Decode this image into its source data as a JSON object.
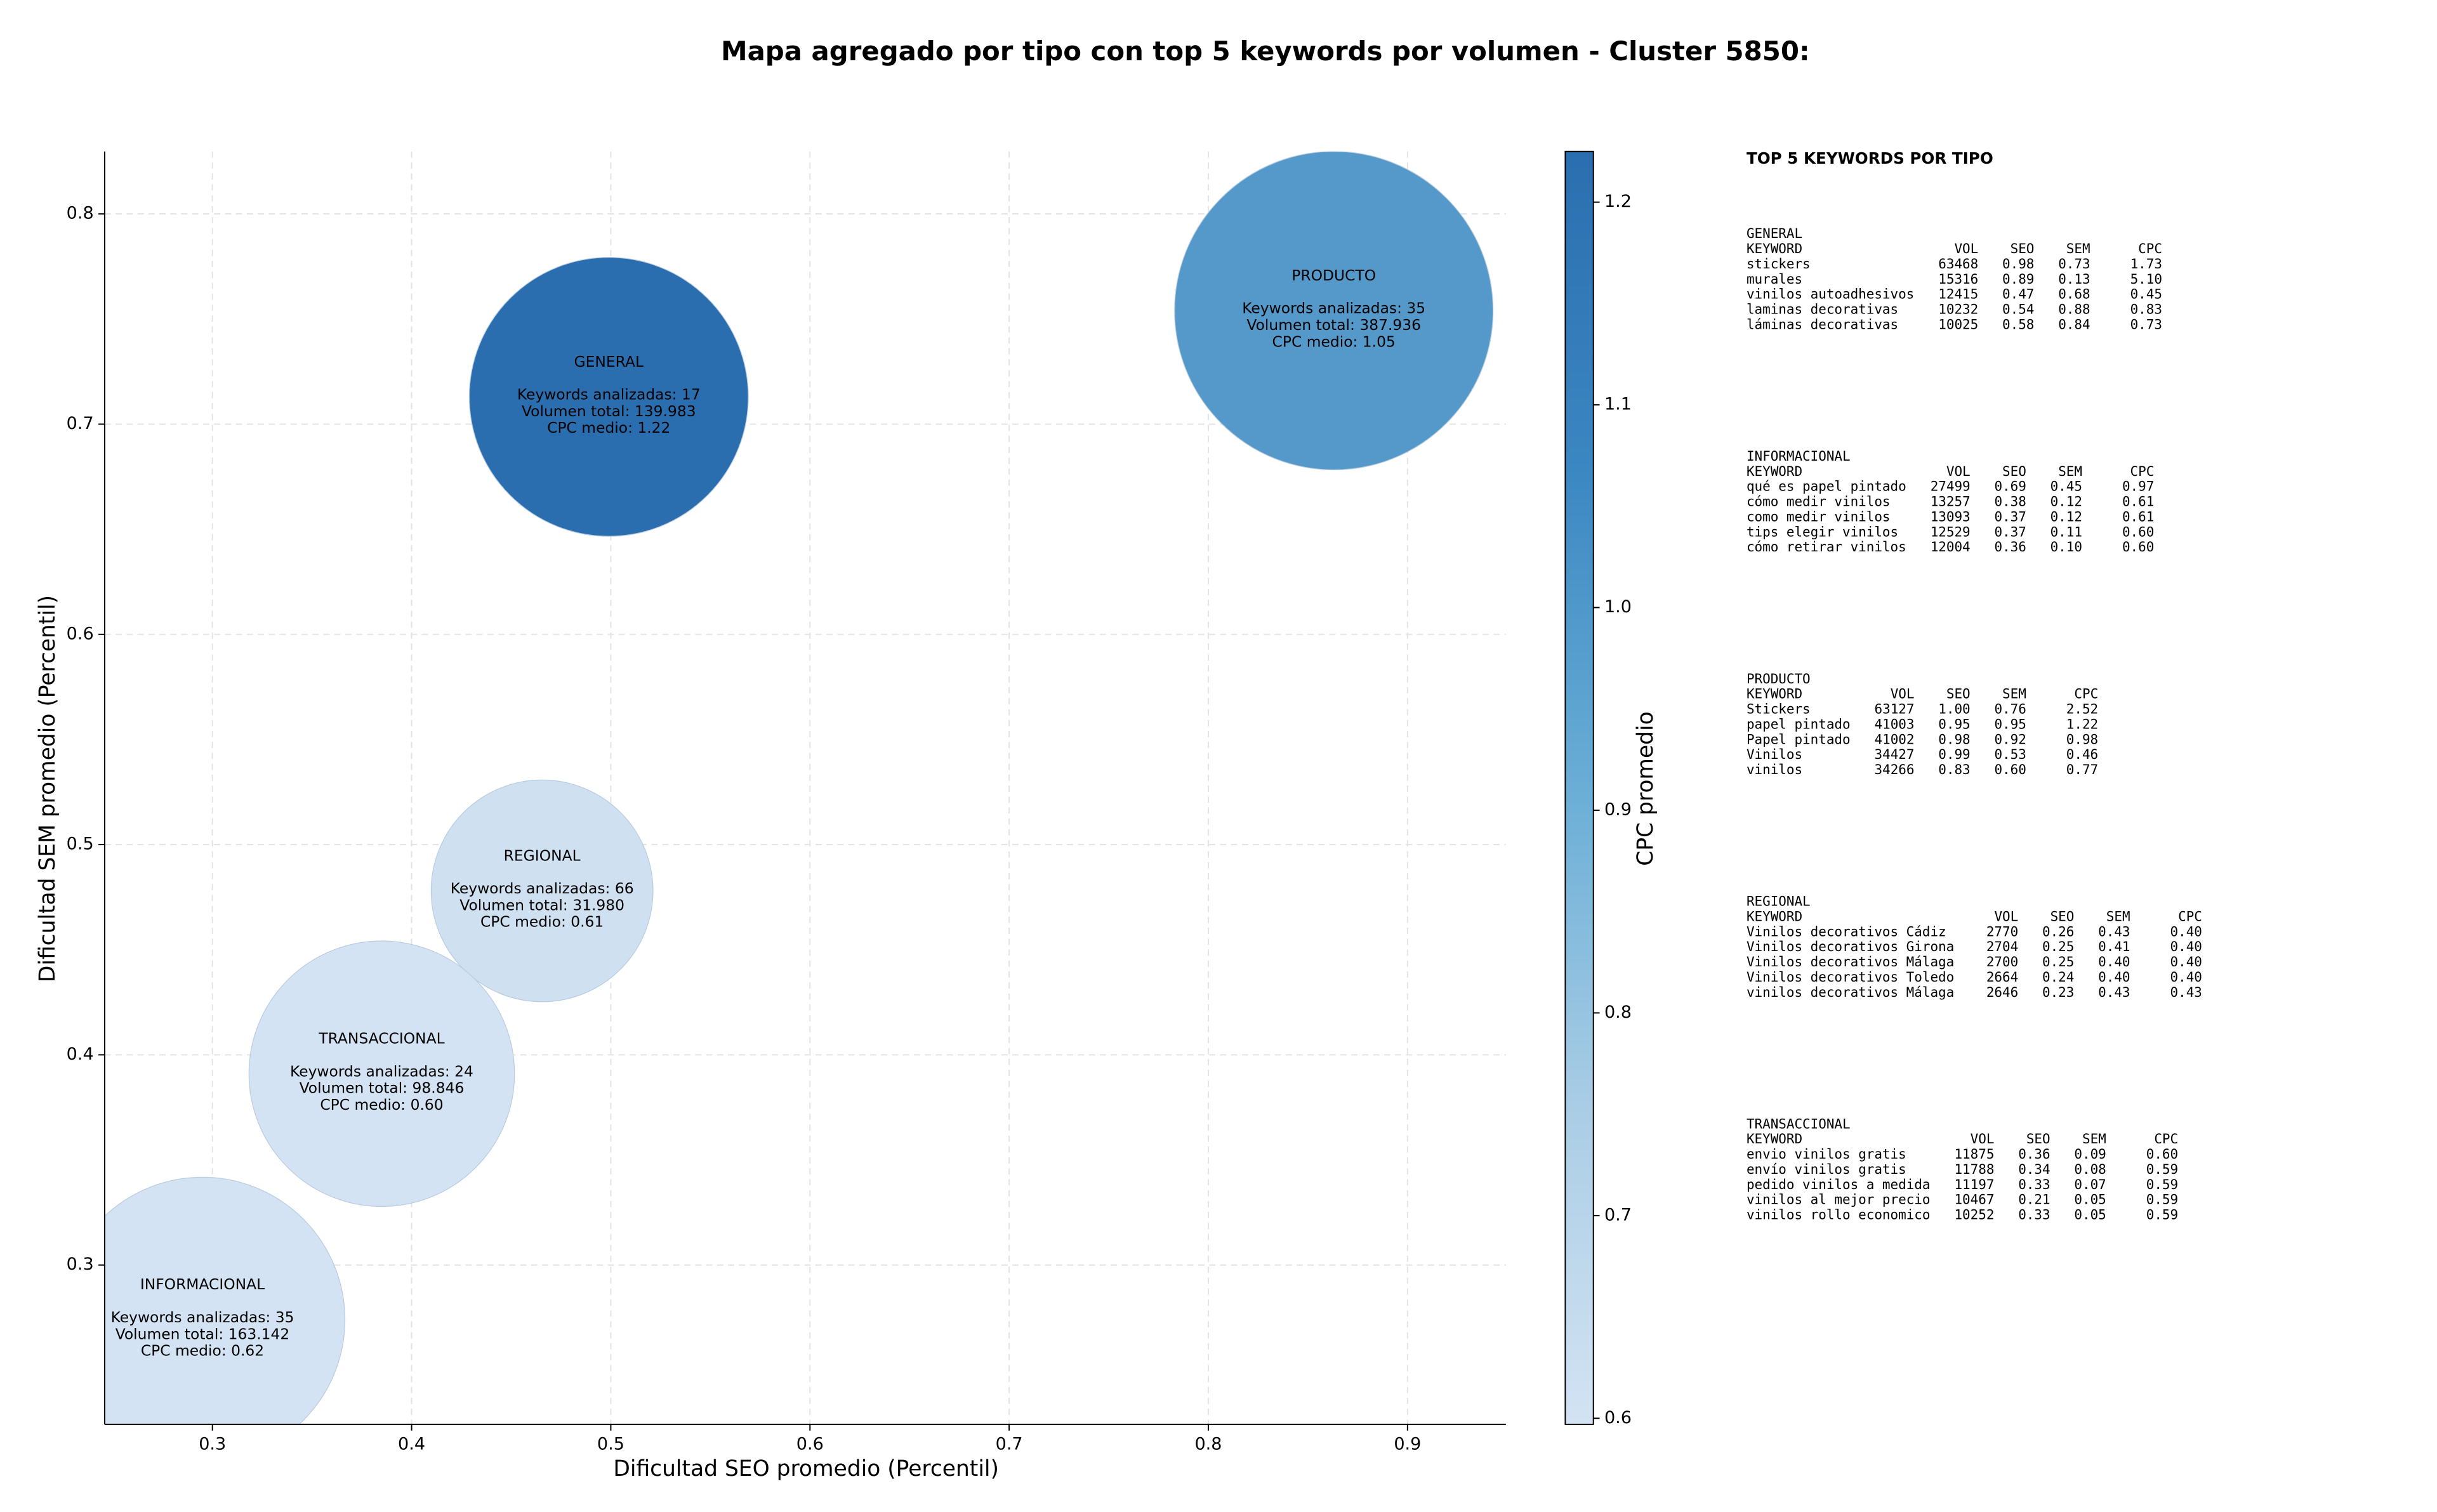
{
  "chart_data": {
    "type": "bubble",
    "title": "Mapa agregado por tipo con top 5 keywords por volumen - Cluster 5850:",
    "xlabel": "Dificultad SEO promedio (Percentil)",
    "ylabel": "Dificultad SEM promedio (Percentil)",
    "categories": [
      "GENERAL",
      "PRODUCTO",
      "REGIONAL",
      "TRANSACCIONAL",
      "INFORMACIONAL"
    ],
    "x": [
      0.499,
      0.863,
      0.4655,
      0.385,
      0.295
    ],
    "values": [
      0.713,
      0.754,
      0.478,
      0.391,
      0.274
    ],
    "sizes": [
      139983,
      387936,
      31980,
      98846,
      163142
    ],
    "colors": [
      "#2b6eaf",
      "#5499c9",
      "#cfe0f1",
      "#d3e3f3",
      "#d3e3f3"
    ],
    "annotations": [
      [
        "Keywords analizadas: 17",
        "Volumen total: 139.983",
        "CPC medio: 1.22"
      ],
      [
        "Keywords analizadas: 35",
        "Volumen total: 387.936",
        "CPC medio: 1.05"
      ],
      [
        "Keywords analizadas: 66",
        "Volumen total: 31.980",
        "CPC medio: 0.61"
      ],
      [
        "Keywords analizadas: 24",
        "Volumen total: 98.846",
        "CPC medio: 0.60"
      ],
      [
        "Keywords analizadas: 35",
        "Volumen total: 163.142",
        "CPC medio: 0.62"
      ]
    ],
    "xlim": [
      0.2459,
      0.9494
    ],
    "xticks": [
      0.3,
      0.4,
      0.5,
      0.6,
      0.7,
      0.8,
      0.9
    ],
    "ylim": [
      0.2242,
      0.8297
    ],
    "yticks": [
      0.3,
      0.4,
      0.5,
      0.6,
      0.7,
      0.8
    ],
    "grid": true,
    "colorbar": {
      "label": "CPC promedio",
      "lim": [
        0.597,
        1.225
      ],
      "ticks": [
        0.6,
        0.7,
        0.8,
        0.9,
        {
          "value": 1,
          "label": "1.0"
        },
        1.1,
        1.2
      ],
      "colors": [
        "#d3e3f3",
        "#a9cde5",
        "#6aaed6",
        "#3b87c2",
        "#2b6eaf"
      ]
    }
  },
  "panel": {
    "title": "TOP 5 KEYWORDS POR TIPO",
    "header": [
      "KEYWORD",
      "VOL",
      "SEO",
      "SEM",
      "CPC"
    ],
    "sections": [
      {
        "name": "GENERAL",
        "rows": [
          [
            "stickers",
            "63468",
            "0.98",
            "0.73",
            "1.73"
          ],
          [
            "murales",
            "15316",
            "0.89",
            "0.13",
            "5.10"
          ],
          [
            "vinilos autoadhesivos",
            "12415",
            "0.47",
            "0.68",
            "0.45"
          ],
          [
            "laminas decorativas",
            "10232",
            "0.54",
            "0.88",
            "0.83"
          ],
          [
            "láminas decorativas",
            "10025",
            "0.58",
            "0.84",
            "0.73"
          ]
        ]
      },
      {
        "name": "INFORMACIONAL",
        "rows": [
          [
            "qué es papel pintado",
            "27499",
            "0.69",
            "0.45",
            "0.97"
          ],
          [
            "cómo medir vinilos",
            "13257",
            "0.38",
            "0.12",
            "0.61"
          ],
          [
            "como medir vinilos",
            "13093",
            "0.37",
            "0.12",
            "0.61"
          ],
          [
            "tips elegir vinilos",
            "12529",
            "0.37",
            "0.11",
            "0.60"
          ],
          [
            "cómo retirar vinilos",
            "12004",
            "0.36",
            "0.10",
            "0.60"
          ]
        ]
      },
      {
        "name": "PRODUCTO",
        "rows": [
          [
            "Stickers",
            "63127",
            "1.00",
            "0.76",
            "2.52"
          ],
          [
            "papel pintado",
            "41003",
            "0.95",
            "0.95",
            "1.22"
          ],
          [
            "Papel pintado",
            "41002",
            "0.98",
            "0.92",
            "0.98"
          ],
          [
            "Vinilos",
            "34427",
            "0.99",
            "0.53",
            "0.46"
          ],
          [
            "vinilos",
            "34266",
            "0.83",
            "0.60",
            "0.77"
          ]
        ]
      },
      {
        "name": "REGIONAL",
        "rows": [
          [
            "Vinilos decorativos Cádiz",
            "2770",
            "0.26",
            "0.43",
            "0.40"
          ],
          [
            "Vinilos decorativos Girona",
            "2704",
            "0.25",
            "0.41",
            "0.40"
          ],
          [
            "Vinilos decorativos Málaga",
            "2700",
            "0.25",
            "0.40",
            "0.40"
          ],
          [
            "Vinilos decorativos Toledo",
            "2664",
            "0.24",
            "0.40",
            "0.40"
          ],
          [
            "vinilos decorativos Málaga",
            "2646",
            "0.23",
            "0.43",
            "0.43"
          ]
        ]
      },
      {
        "name": "TRANSACCIONAL",
        "rows": [
          [
            "envio vinilos gratis",
            "11875",
            "0.36",
            "0.09",
            "0.60"
          ],
          [
            "envío vinilos gratis",
            "11788",
            "0.34",
            "0.08",
            "0.59"
          ],
          [
            "pedido vinilos a medida",
            "11197",
            "0.33",
            "0.07",
            "0.59"
          ],
          [
            "vinilos al mejor precio",
            "10467",
            "0.21",
            "0.05",
            "0.59"
          ],
          [
            "vinilos rollo economico",
            "10252",
            "0.33",
            "0.05",
            "0.59"
          ]
        ]
      }
    ]
  }
}
